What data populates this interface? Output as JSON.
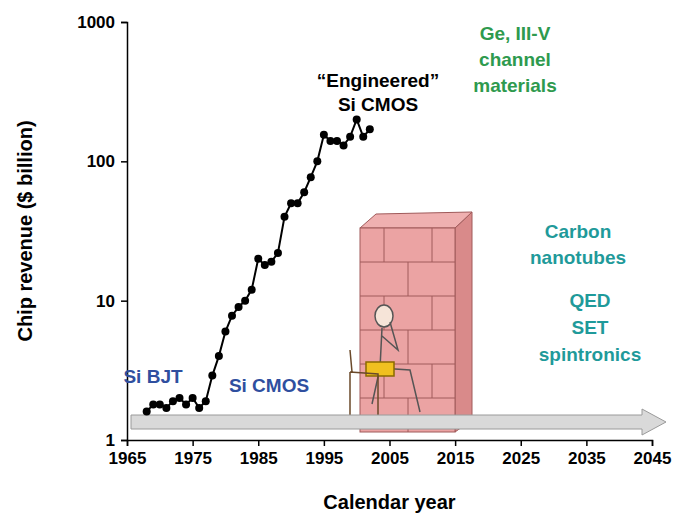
{
  "chart_data": {
    "type": "line",
    "x_label": "Calendar year",
    "y_label": "Chip revenue ($ billion)",
    "log": "y",
    "x": [
      1968,
      1969,
      1970,
      1971,
      1972,
      1973,
      1974,
      1975,
      1976,
      1977,
      1978,
      1979,
      1980,
      1981,
      1982,
      1983,
      1984,
      1985,
      1986,
      1987,
      1988,
      1989,
      1990,
      1991,
      1992,
      1993,
      1994,
      1995,
      1996,
      1997,
      1998,
      1999,
      2000,
      2001,
      2002
    ],
    "series": [
      {
        "color": "#000000",
        "marker": "circle",
        "values": [
          1.6,
          1.8,
          1.8,
          1.7,
          1.9,
          2.0,
          1.8,
          2.0,
          1.7,
          1.9,
          2.9,
          4,
          6,
          7.8,
          9,
          10,
          12,
          20,
          18,
          19,
          22,
          40,
          50,
          50,
          60,
          77,
          100,
          155,
          140,
          140,
          130,
          150,
          200,
          150,
          170
        ]
      }
    ],
    "xlim": [
      1965,
      2045
    ],
    "xticks": [
      1965,
      1975,
      1985,
      1995,
      2005,
      2015,
      2025,
      2035,
      2045
    ],
    "ylim": [
      1,
      1000
    ],
    "yticks": [
      1,
      10,
      100,
      1000
    ],
    "grid": false,
    "annotations": [
      [
        "Si BJT"
      ],
      [
        "Si CMOS"
      ],
      [
        "“Engineered”",
        "Si CMOS"
      ],
      [
        "Ge, III-V",
        "channel",
        "materials"
      ],
      [
        "Carbon",
        "nanotubes"
      ],
      [
        "QED",
        "SET",
        "spintronics"
      ]
    ]
  }
}
